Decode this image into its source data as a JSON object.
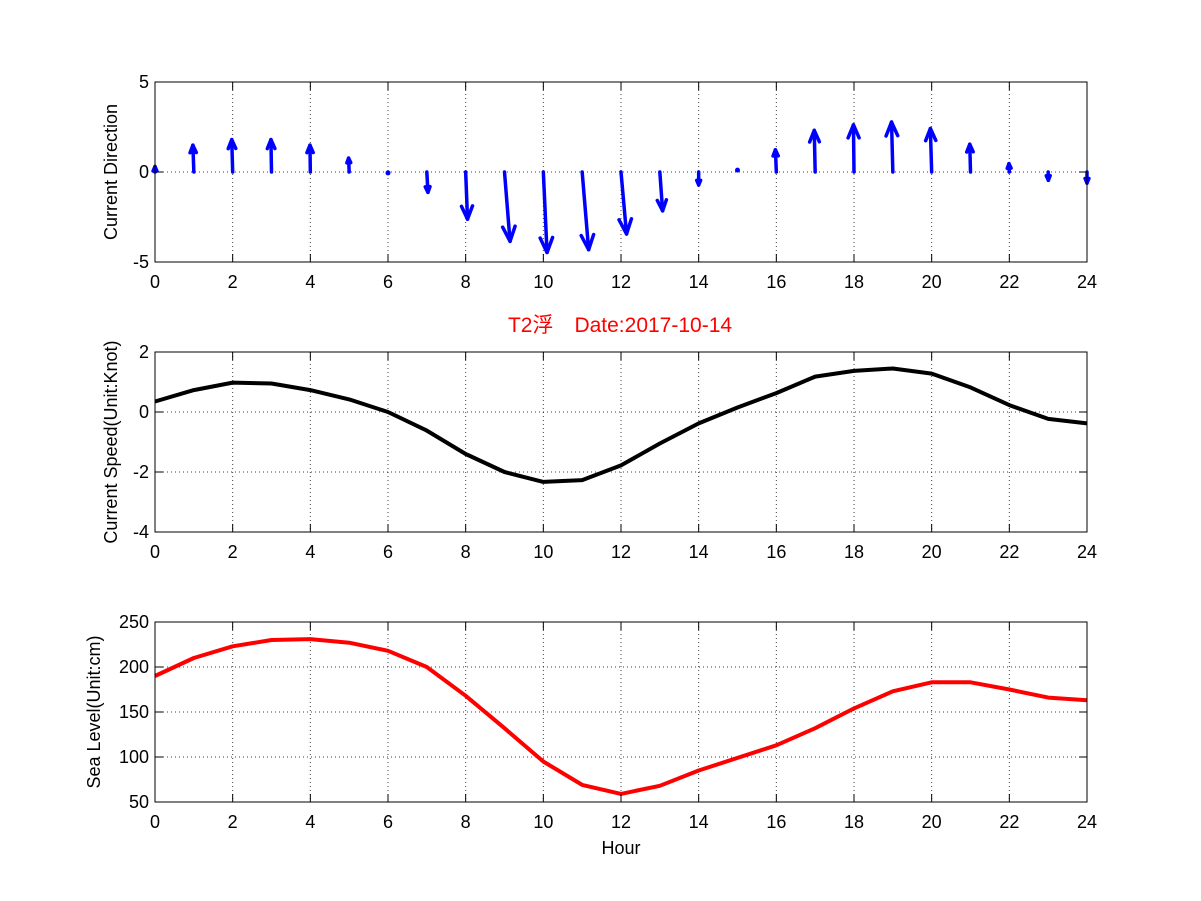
{
  "figure_title": "T2浮　Date:2017-10-14",
  "colors": {
    "direction": "#0000ff",
    "speed": "#000000",
    "level": "#ff0000",
    "title": "#ff0000"
  },
  "chart_data": [
    {
      "type": "quiver",
      "title": "",
      "xlabel": "",
      "ylabel": "Current Direction",
      "xlim": [
        0,
        24
      ],
      "ylim": [
        -5,
        5
      ],
      "grid": true,
      "xticks": [
        0,
        2,
        4,
        6,
        8,
        10,
        12,
        14,
        16,
        18,
        20,
        22,
        24
      ],
      "yticks": [
        -5,
        0,
        5
      ],
      "x": [
        0,
        1,
        2,
        3,
        4,
        5,
        6,
        7,
        8,
        9,
        10,
        11,
        12,
        13,
        14,
        15,
        16,
        17,
        18,
        19,
        20,
        21,
        22,
        23,
        24
      ],
      "u": [
        0,
        -0.05,
        -0.05,
        -0.03,
        -0.02,
        -0.03,
        0,
        0.06,
        0.1,
        0.3,
        0.2,
        0.35,
        0.3,
        0.15,
        0,
        -0.03,
        -0.05,
        -0.05,
        -0.03,
        -0.07,
        -0.07,
        -0.04,
        -0.02,
        0.01,
        0
      ],
      "v": [
        0.3,
        1.45,
        1.75,
        1.75,
        1.45,
        0.75,
        -0.1,
        -1.1,
        -2.55,
        -3.75,
        -4.35,
        -4.2,
        -3.35,
        -2.1,
        -0.7,
        0.2,
        1.2,
        2.25,
        2.55,
        2.7,
        2.35,
        1.5,
        0.45,
        -0.45,
        -0.6
      ]
    },
    {
      "type": "line",
      "title": "",
      "xlabel": "",
      "ylabel": "Current Speed(Unit:Knot)",
      "xlim": [
        0,
        24
      ],
      "ylim": [
        -4,
        2
      ],
      "grid": true,
      "xticks": [
        0,
        2,
        4,
        6,
        8,
        10,
        12,
        14,
        16,
        18,
        20,
        22,
        24
      ],
      "yticks": [
        -4,
        -2,
        0,
        2
      ],
      "series": [
        {
          "x": [
            0,
            1,
            2,
            3,
            4,
            5,
            6,
            7,
            8,
            9,
            10,
            11,
            12,
            13,
            14,
            15,
            16,
            17,
            18,
            19,
            20,
            21,
            22,
            23,
            24
          ],
          "values": [
            0.35,
            0.73,
            0.98,
            0.95,
            0.73,
            0.42,
            0.0,
            -0.62,
            -1.4,
            -2.0,
            -2.33,
            -2.27,
            -1.78,
            -1.05,
            -0.38,
            0.15,
            0.63,
            1.18,
            1.37,
            1.45,
            1.28,
            0.82,
            0.23,
            -0.23,
            -0.38
          ]
        }
      ]
    },
    {
      "type": "line",
      "title": "",
      "xlabel": "Hour",
      "ylabel": "Sea Level(Unit:cm)",
      "xlim": [
        0,
        24
      ],
      "ylim": [
        50,
        250
      ],
      "grid": true,
      "xticks": [
        0,
        2,
        4,
        6,
        8,
        10,
        12,
        14,
        16,
        18,
        20,
        22,
        24
      ],
      "yticks": [
        50,
        100,
        150,
        200,
        250
      ],
      "series": [
        {
          "x": [
            0,
            1,
            2,
            3,
            4,
            5,
            6,
            7,
            8,
            9,
            10,
            11,
            12,
            13,
            14,
            15,
            16,
            17,
            18,
            19,
            20,
            21,
            22,
            23,
            24
          ],
          "values": [
            190,
            210,
            223,
            230,
            231,
            227,
            218,
            200,
            168,
            132,
            95,
            69,
            59,
            68,
            85,
            99,
            113,
            132,
            154,
            173,
            183,
            183,
            175,
            166,
            163
          ]
        }
      ]
    }
  ]
}
